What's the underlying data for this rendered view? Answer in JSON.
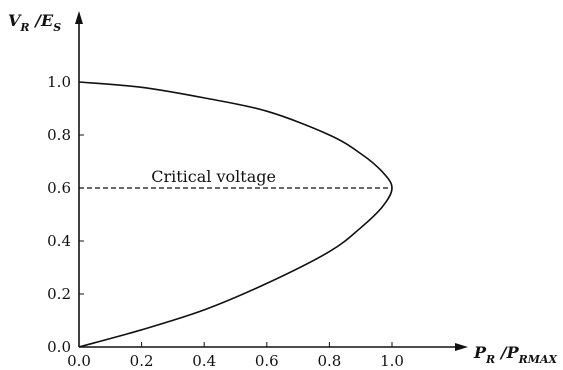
{
  "chart_data": {
    "type": "line",
    "title": "",
    "xlabel": {
      "main": "P",
      "sub1": "R",
      "sep": " /P",
      "sub2": "RMAX"
    },
    "ylabel": {
      "main": "V",
      "sub1": "R",
      "sep": " /E",
      "sub2": "S"
    },
    "xlim": [
      0,
      1.0
    ],
    "ylim": [
      0,
      1.0
    ],
    "x_ticks": [
      "0.0",
      "0.2",
      "0.4",
      "0.6",
      "0.8",
      "1.0"
    ],
    "y_ticks": [
      "0.0",
      "0.2",
      "0.4",
      "0.6",
      "0.8",
      "1.0"
    ],
    "grid": false,
    "series": [
      {
        "style": "solid",
        "points": [
          {
            "x": 0.0,
            "y": 1.0
          },
          {
            "x": 0.2,
            "y": 0.98
          },
          {
            "x": 0.4,
            "y": 0.94
          },
          {
            "x": 0.6,
            "y": 0.89
          },
          {
            "x": 0.8,
            "y": 0.8
          },
          {
            "x": 0.9,
            "y": 0.73
          },
          {
            "x": 0.97,
            "y": 0.66
          },
          {
            "x": 1.0,
            "y": 0.6
          },
          {
            "x": 0.97,
            "y": 0.53
          },
          {
            "x": 0.9,
            "y": 0.45
          },
          {
            "x": 0.8,
            "y": 0.36
          },
          {
            "x": 0.6,
            "y": 0.24
          },
          {
            "x": 0.4,
            "y": 0.14
          },
          {
            "x": 0.2,
            "y": 0.065
          },
          {
            "x": 0.0,
            "y": 0.0
          }
        ]
      }
    ],
    "annotations": [
      {
        "label": "Critical voltage",
        "y": 0.6,
        "x_from": 0.0,
        "x_to": 1.0,
        "style": "dashed"
      }
    ]
  }
}
